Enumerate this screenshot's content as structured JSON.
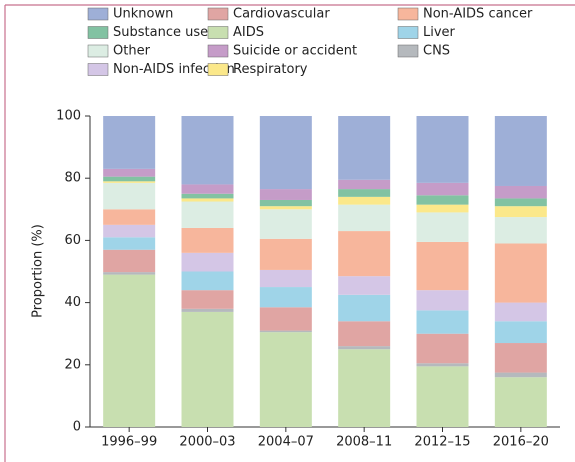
{
  "chart_data": {
    "type": "stacked_bar",
    "y_label": "Proportion (%)",
    "categories": [
      "1996–99",
      "2000–03",
      "2004–07",
      "2008–11",
      "2012–15",
      "2016–20"
    ],
    "ylim": [
      0,
      100
    ],
    "yticks": [
      0,
      20,
      40,
      60,
      80,
      100
    ],
    "series": [
      {
        "name": "AIDS",
        "color": "#c8dfb0",
        "values": [
          49,
          37,
          30.5,
          25,
          19.5,
          16
        ]
      },
      {
        "name": "CNS",
        "color": "#b5b9bd",
        "values": [
          0.8,
          1,
          0.5,
          1,
          1,
          1.5
        ]
      },
      {
        "name": "Cardiovascular",
        "color": "#e0a5a3",
        "values": [
          7.2,
          6,
          7.5,
          8,
          9.5,
          9.5
        ]
      },
      {
        "name": "Liver",
        "color": "#9fd4e8",
        "values": [
          4,
          6,
          6.5,
          8.5,
          7.5,
          7
        ]
      },
      {
        "name": "Non-AIDS infection",
        "color": "#d4c6e6",
        "values": [
          4,
          6,
          5.5,
          6,
          6.5,
          6
        ]
      },
      {
        "name": "Non-AIDS cancer",
        "color": "#f7b69c",
        "values": [
          5,
          8,
          10,
          14.5,
          15.5,
          19
        ]
      },
      {
        "name": "Other",
        "color": "#dcede3",
        "values": [
          8.5,
          8.5,
          9.5,
          8.5,
          9.5,
          8.5
        ]
      },
      {
        "name": "Respiratory",
        "color": "#fbe88a",
        "values": [
          0.5,
          1,
          1,
          2.5,
          2.5,
          3.5
        ]
      },
      {
        "name": "Substance use",
        "color": "#82c2a2",
        "values": [
          1.5,
          1.5,
          2,
          2.5,
          3,
          2.5
        ]
      },
      {
        "name": "Suicide or accident",
        "color": "#c59cc8",
        "values": [
          2.5,
          3,
          3.5,
          3,
          4,
          4
        ]
      },
      {
        "name": "Unknown",
        "color": "#9eafd7",
        "values": [
          17,
          22,
          23.5,
          20.5,
          21.5,
          22.5
        ]
      }
    ]
  }
}
